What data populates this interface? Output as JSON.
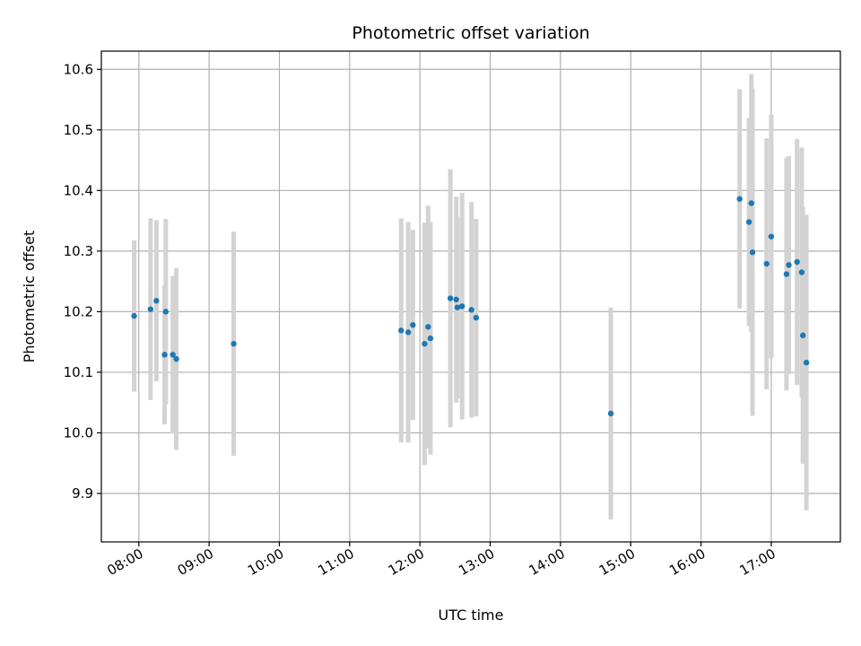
{
  "chart_data": {
    "type": "scatter",
    "title": "Photometric offset variation",
    "xlabel": "UTC time",
    "ylabel": "Photometric offset",
    "x_ticks": [
      "08:00",
      "09:00",
      "10:00",
      "11:00",
      "12:00",
      "13:00",
      "14:00",
      "15:00",
      "16:00",
      "17:00"
    ],
    "y_ticks": [
      "9.9",
      "10.0",
      "10.1",
      "10.2",
      "10.3",
      "10.4",
      "10.5",
      "10.6"
    ],
    "xlim": [
      "07:28",
      "17:59"
    ],
    "ylim": [
      9.82,
      10.63
    ],
    "grid": true,
    "colors": {
      "point": "#1f77b4",
      "errorbar": "#d3d3d3",
      "grid": "#b0b0b0"
    },
    "points": [
      {
        "time": "07:56",
        "y": 10.193,
        "err": 0.125
      },
      {
        "time": "08:10",
        "y": 10.204,
        "err": 0.15
      },
      {
        "time": "08:15",
        "y": 10.218,
        "err": 0.133
      },
      {
        "time": "08:22",
        "y": 10.129,
        "err": 0.115
      },
      {
        "time": "08:23",
        "y": 10.2,
        "err": 0.153
      },
      {
        "time": "08:29",
        "y": 10.129,
        "err": 0.13
      },
      {
        "time": "08:32",
        "y": 10.122,
        "err": 0.15
      },
      {
        "time": "09:21",
        "y": 10.147,
        "err": 0.185
      },
      {
        "time": "11:44",
        "y": 10.169,
        "err": 0.185
      },
      {
        "time": "11:50",
        "y": 10.166,
        "err": 0.182
      },
      {
        "time": "11:54",
        "y": 10.178,
        "err": 0.157
      },
      {
        "time": "12:04",
        "y": 10.147,
        "err": 0.2
      },
      {
        "time": "12:07",
        "y": 10.175,
        "err": 0.2
      },
      {
        "time": "12:09",
        "y": 10.156,
        "err": 0.192
      },
      {
        "time": "12:26",
        "y": 10.222,
        "err": 0.213
      },
      {
        "time": "12:31",
        "y": 10.22,
        "err": 0.17
      },
      {
        "time": "12:32",
        "y": 10.207,
        "err": 0.15
      },
      {
        "time": "12:36",
        "y": 10.209,
        "err": 0.187
      },
      {
        "time": "12:44",
        "y": 10.203,
        "err": 0.178
      },
      {
        "time": "12:48",
        "y": 10.19,
        "err": 0.163
      },
      {
        "time": "14:43",
        "y": 10.032,
        "err": 0.175
      },
      {
        "time": "16:33",
        "y": 10.386,
        "err": 0.181
      },
      {
        "time": "16:41",
        "y": 10.348,
        "err": 0.172
      },
      {
        "time": "16:43",
        "y": 10.379,
        "err": 0.213
      },
      {
        "time": "16:44",
        "y": 10.298,
        "err": 0.27
      },
      {
        "time": "16:56",
        "y": 10.279,
        "err": 0.207
      },
      {
        "time": "17:00",
        "y": 10.324,
        "err": 0.201
      },
      {
        "time": "17:13",
        "y": 10.262,
        "err": 0.192
      },
      {
        "time": "17:15",
        "y": 10.277,
        "err": 0.18
      },
      {
        "time": "17:22",
        "y": 10.282,
        "err": 0.203
      },
      {
        "time": "17:26",
        "y": 10.265,
        "err": 0.206
      },
      {
        "time": "17:27",
        "y": 10.161,
        "err": 0.212
      },
      {
        "time": "17:30",
        "y": 10.116,
        "err": 0.244
      }
    ]
  }
}
